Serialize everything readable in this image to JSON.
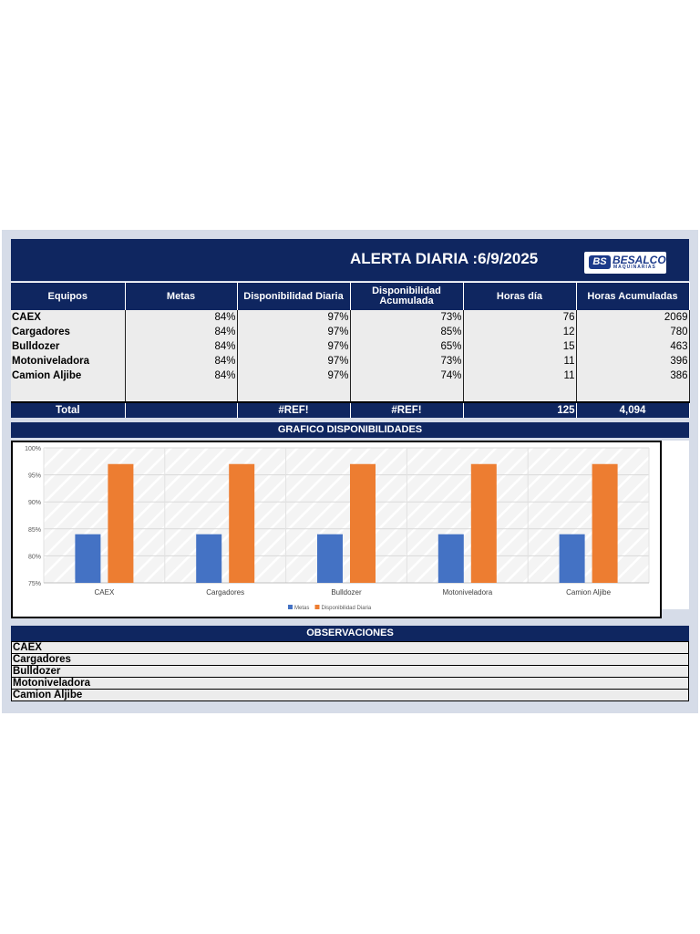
{
  "header": {
    "title": "ALERTA DIARIA  :6/9/2025",
    "logo_mark": "BS",
    "logo_name": "BESALCO",
    "logo_sub": "MAQUINARIAS"
  },
  "table": {
    "columns": [
      "Equipos",
      "Metas",
      "Disponibilidad Diaria",
      "Disponibilidad Acumulada",
      "Horas día",
      "Horas Acumuladas"
    ],
    "rows": [
      {
        "equipo": "CAEX",
        "metas": "84%",
        "disp_diaria": "97%",
        "disp_acum": "73%",
        "horas_dia": "76",
        "horas_acum": "2069"
      },
      {
        "equipo": "Cargadores",
        "metas": "84%",
        "disp_diaria": "97%",
        "disp_acum": "85%",
        "horas_dia": "12",
        "horas_acum": "780"
      },
      {
        "equipo": "Bulldozer",
        "metas": "84%",
        "disp_diaria": "97%",
        "disp_acum": "65%",
        "horas_dia": "15",
        "horas_acum": "463"
      },
      {
        "equipo": "Motoniveladora",
        "metas": "84%",
        "disp_diaria": "97%",
        "disp_acum": "73%",
        "horas_dia": "11",
        "horas_acum": "396"
      },
      {
        "equipo": "Camion Aljibe",
        "metas": "84%",
        "disp_diaria": "97%",
        "disp_acum": "74%",
        "horas_dia": "11",
        "horas_acum": "386"
      }
    ],
    "total": {
      "label": "Total",
      "metas": "",
      "disp_diaria": "#REF!",
      "disp_acum": "#REF!",
      "horas_dia": "125",
      "horas_acum": "4,094"
    }
  },
  "chart_section_title": "GRAFICO DISPONIBILIDADES",
  "chart_data": {
    "type": "bar",
    "categories": [
      "CAEX",
      "Cargadores",
      "Bulldozer",
      "Motoniveladora",
      "Camion Aljibe"
    ],
    "series": [
      {
        "name": "Metas",
        "values": [
          84,
          84,
          84,
          84,
          84
        ],
        "color": "#4472c4"
      },
      {
        "name": "Disponibilidad Diaria",
        "values": [
          97,
          97,
          97,
          97,
          97
        ],
        "color": "#ed7d31"
      }
    ],
    "ylim": [
      75,
      100
    ],
    "yticks": [
      "75%",
      "80%",
      "85%",
      "90%",
      "95%",
      "100%"
    ],
    "grid": true,
    "legend": "bottom"
  },
  "observaciones": {
    "title": "OBSERVACIONES",
    "items": [
      "CAEX",
      "Cargadores",
      "Bulldozer",
      "Motoniveladora",
      "Camion Aljibe"
    ]
  }
}
